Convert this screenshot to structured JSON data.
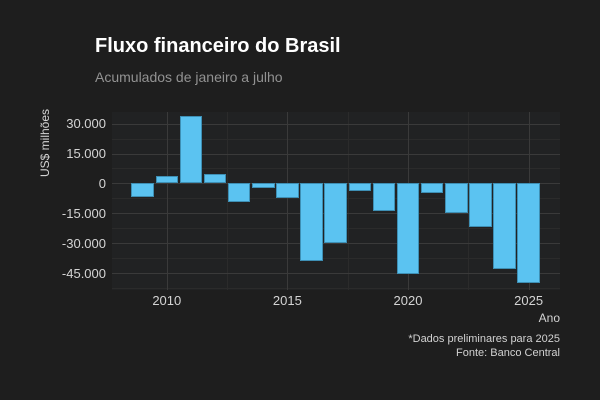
{
  "chart_data": {
    "type": "bar",
    "title": "Fluxo financeiro do Brasil",
    "subtitle": "Acumulados de janeiro a julho",
    "xlabel": "Ano",
    "ylabel": "US$ milhões",
    "caption_line1": "*Dados preliminares para 2025",
    "caption_line2": "Fonte: Banco Central",
    "categories": [
      2009,
      2010,
      2011,
      2012,
      2013,
      2014,
      2015,
      2016,
      2017,
      2018,
      2019,
      2020,
      2021,
      2022,
      2023,
      2024,
      2025
    ],
    "values": [
      -6700,
      3800,
      33600,
      4700,
      -9500,
      -2500,
      -7500,
      -39000,
      -30100,
      -3700,
      -13900,
      -45300,
      -4900,
      -15100,
      -22000,
      -42800,
      -50000
    ],
    "ylim": [
      -53500,
      35800
    ],
    "xlim": [
      2007.73,
      2026.3
    ],
    "yticks": [
      {
        "value": 30000,
        "label": "30.000"
      },
      {
        "value": 15000,
        "label": "15.000"
      },
      {
        "value": 0,
        "label": "0"
      },
      {
        "value": -15000,
        "label": "-15.000"
      },
      {
        "value": -30000,
        "label": "-30.000"
      },
      {
        "value": -45000,
        "label": "-45.000"
      }
    ],
    "yticks_minor": [
      22500,
      7500,
      -7500,
      -22500,
      -37500,
      -52500
    ],
    "xticks": [
      {
        "value": 2010,
        "label": "2010"
      },
      {
        "value": 2015,
        "label": "2015"
      },
      {
        "value": 2020,
        "label": "2020"
      },
      {
        "value": 2025,
        "label": "2025"
      }
    ],
    "xticks_minor": [
      2012.5,
      2017.5,
      2022.5
    ],
    "grid": true,
    "legend": false,
    "colors": {
      "bar": "#5bc3f1",
      "background": "#1e1e1e",
      "panel": "#212223",
      "grid_major": "#3a3a3a",
      "grid_minor": "#2b2b2b",
      "title": "#ffffff",
      "subtitle": "#929292",
      "tick_label": "#d4d4d4"
    }
  }
}
